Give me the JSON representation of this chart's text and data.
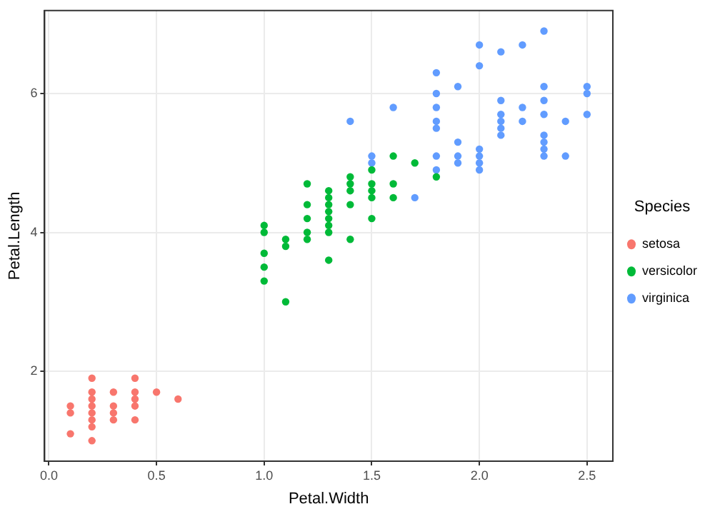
{
  "chart_data": {
    "type": "scatter",
    "xlabel": "Petal.Width",
    "ylabel": "Petal.Length",
    "legend_title": "Species",
    "legend": "right",
    "grid": true,
    "marker": "circle",
    "xlim": [
      -0.02,
      2.62
    ],
    "xticks": [
      {
        "value": 0,
        "label": "0.0"
      },
      {
        "value": 0.5,
        "label": "0.5"
      },
      {
        "value": 1,
        "label": "1.0"
      },
      {
        "value": 1.5,
        "label": "1.5"
      },
      {
        "value": 2,
        "label": "2.0"
      },
      {
        "value": 2.5,
        "label": "2.5"
      }
    ],
    "ylim": [
      0.705,
      7.195
    ],
    "yticks": [
      2,
      4,
      6
    ],
    "series": [
      {
        "name": "setosa",
        "color": "#f8766d",
        "x": [
          0.2,
          0.2,
          0.2,
          0.4,
          0.3,
          0.1,
          0.2,
          0.1,
          0.1,
          0.2,
          0.4,
          0.4,
          0.3,
          0.3,
          0.2,
          0.2,
          0.5,
          0.2,
          0.4,
          0.3,
          0.6,
          0.4
        ],
        "values": [
          1.4,
          1.3,
          1.5,
          1.7,
          1.4,
          1.5,
          1.6,
          1.4,
          1.1,
          1.2,
          1.5,
          1.3,
          1.7,
          1.5,
          1.7,
          1.0,
          1.7,
          1.9,
          1.6,
          1.3,
          1.6,
          1.9
        ]
      },
      {
        "name": "versicolor",
        "color": "#00ba38",
        "x": [
          1.4,
          1.5,
          1.5,
          1.3,
          1.5,
          1.3,
          1.6,
          1.0,
          1.3,
          1.4,
          1.0,
          1.5,
          1.0,
          1.3,
          1.4,
          1.0,
          1.1,
          1.8,
          1.2,
          1.3,
          1.4,
          1.7,
          1.1,
          1.0,
          1.2,
          1.6,
          1.6,
          1.5,
          1.3,
          1.3,
          1.2,
          1.4,
          1.2,
          1.3,
          1.2,
          1.1
        ],
        "values": [
          4.7,
          4.5,
          4.9,
          4.0,
          4.6,
          4.5,
          4.7,
          3.3,
          4.6,
          3.9,
          3.5,
          4.2,
          4.0,
          3.6,
          4.4,
          4.1,
          3.9,
          4.8,
          4.7,
          4.3,
          4.8,
          5.0,
          3.8,
          3.7,
          3.9,
          5.1,
          4.5,
          4.7,
          4.4,
          4.1,
          4.4,
          4.6,
          4.0,
          4.2,
          4.2,
          3.0
        ]
      },
      {
        "name": "virginica",
        "color": "#619cff",
        "x": [
          2.5,
          1.9,
          2.1,
          1.8,
          2.2,
          2.1,
          1.7,
          1.8,
          1.8,
          2.5,
          2.0,
          1.9,
          2.1,
          2.0,
          2.4,
          2.3,
          1.8,
          2.2,
          2.3,
          1.5,
          2.3,
          2.0,
          2.0,
          1.8,
          2.1,
          1.8,
          2.1,
          1.6,
          1.9,
          2.0,
          2.2,
          1.5,
          1.4,
          2.3,
          2.4,
          2.1,
          2.3,
          2.3,
          2.5,
          2.3,
          1.9,
          2.0,
          2.3,
          1.8
        ],
        "values": [
          6.0,
          5.1,
          5.9,
          5.6,
          5.8,
          6.6,
          4.5,
          6.3,
          5.8,
          6.1,
          5.1,
          5.3,
          5.5,
          5.0,
          5.1,
          5.3,
          5.5,
          6.7,
          6.9,
          5.0,
          5.7,
          4.9,
          6.7,
          4.9,
          5.7,
          6.0,
          5.6,
          5.8,
          6.1,
          6.4,
          5.6,
          5.1,
          5.6,
          6.1,
          5.6,
          5.4,
          5.1,
          5.9,
          5.7,
          5.2,
          5.0,
          5.2,
          5.4,
          5.1
        ]
      }
    ]
  }
}
